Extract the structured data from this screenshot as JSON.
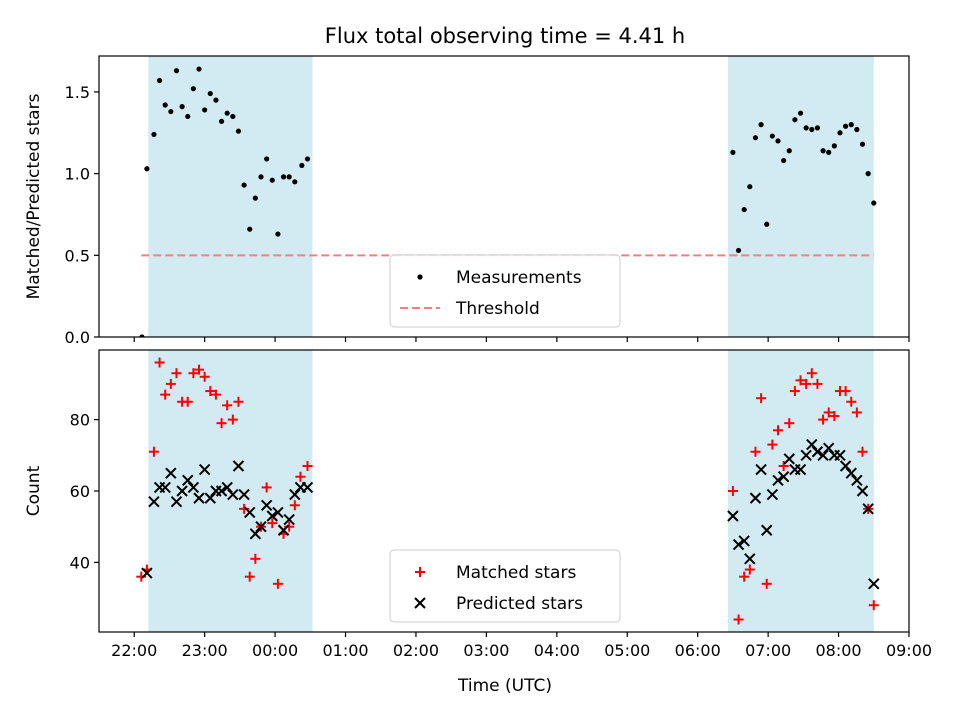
{
  "chart_data": {
    "title": "Flux total observing time = 4.41 h",
    "xlabel": "Time (UTC)",
    "x_tick_labels": [
      "22:00",
      "23:00",
      "00:00",
      "01:00",
      "02:00",
      "03:00",
      "04:00",
      "05:00",
      "06:00",
      "07:00",
      "08:00",
      "09:00"
    ],
    "xlim_hours": [
      21.5,
      33.0
    ],
    "x_ticks_hours": [
      22,
      23,
      24,
      25,
      26,
      27,
      28,
      29,
      30,
      31,
      32,
      33
    ],
    "shaded_intervals_hours": [
      [
        22.2,
        24.53
      ],
      [
        30.43,
        32.5
      ]
    ],
    "shade_color": "#add8e6",
    "panels": [
      {
        "type": "scatter",
        "ylabel": "Matched/Predicted stars",
        "ylim": [
          0,
          1.72
        ],
        "y_ticks": [
          0.0,
          0.5,
          1.0,
          1.5
        ],
        "y_tick_labels": [
          "0.0",
          "0.5",
          "1.0",
          "1.5"
        ],
        "threshold": 0.5,
        "threshold_color": "#f08080",
        "legend": {
          "placement": "lower-center",
          "entries": [
            "Measurements",
            "Threshold"
          ]
        },
        "series": [
          {
            "name": "Measurements",
            "color": "#000000",
            "marker": "dot",
            "points": [
              [
                22.11,
                0.0
              ],
              [
                22.18,
                1.03
              ],
              [
                22.28,
                1.24
              ],
              [
                22.36,
                1.57
              ],
              [
                22.44,
                1.42
              ],
              [
                22.52,
                1.38
              ],
              [
                22.6,
                1.63
              ],
              [
                22.68,
                1.41
              ],
              [
                22.76,
                1.35
              ],
              [
                22.84,
                1.52
              ],
              [
                22.92,
                1.64
              ],
              [
                23.0,
                1.39
              ],
              [
                23.08,
                1.49
              ],
              [
                23.16,
                1.45
              ],
              [
                23.24,
                1.32
              ],
              [
                23.32,
                1.37
              ],
              [
                23.4,
                1.35
              ],
              [
                23.48,
                1.26
              ],
              [
                23.56,
                0.93
              ],
              [
                23.64,
                0.66
              ],
              [
                23.72,
                0.85
              ],
              [
                23.8,
                0.98
              ],
              [
                23.88,
                1.09
              ],
              [
                23.96,
                0.96
              ],
              [
                24.04,
                0.63
              ],
              [
                24.12,
                0.98
              ],
              [
                24.2,
                0.98
              ],
              [
                24.28,
                0.95
              ],
              [
                24.38,
                1.05
              ],
              [
                24.46,
                1.09
              ],
              [
                30.5,
                1.13
              ],
              [
                30.58,
                0.53
              ],
              [
                30.66,
                0.78
              ],
              [
                30.74,
                0.92
              ],
              [
                30.82,
                1.22
              ],
              [
                30.9,
                1.3
              ],
              [
                30.98,
                0.69
              ],
              [
                31.06,
                1.23
              ],
              [
                31.14,
                1.2
              ],
              [
                31.22,
                1.08
              ],
              [
                31.3,
                1.14
              ],
              [
                31.38,
                1.33
              ],
              [
                31.46,
                1.37
              ],
              [
                31.54,
                1.28
              ],
              [
                31.62,
                1.27
              ],
              [
                31.7,
                1.28
              ],
              [
                31.78,
                1.14
              ],
              [
                31.86,
                1.13
              ],
              [
                31.94,
                1.17
              ],
              [
                32.02,
                1.25
              ],
              [
                32.1,
                1.29
              ],
              [
                32.18,
                1.3
              ],
              [
                32.26,
                1.27
              ],
              [
                32.34,
                1.18
              ],
              [
                32.42,
                1.0
              ],
              [
                32.5,
                0.82
              ]
            ]
          }
        ]
      },
      {
        "type": "scatter",
        "ylabel": "Count",
        "ylim": [
          20.5,
          99.5
        ],
        "y_ticks": [
          40,
          60,
          80
        ],
        "y_tick_labels": [
          "40",
          "60",
          "80"
        ],
        "legend": {
          "placement": "lower-center",
          "entries": [
            "Matched stars",
            "Predicted stars"
          ]
        },
        "series": [
          {
            "name": "Matched stars",
            "color": "#ff0000",
            "marker": "plus",
            "points": [
              [
                22.1,
                36
              ],
              [
                22.18,
                38
              ],
              [
                22.28,
                71
              ],
              [
                22.36,
                96
              ],
              [
                22.44,
                87
              ],
              [
                22.52,
                90
              ],
              [
                22.6,
                93
              ],
              [
                22.68,
                85
              ],
              [
                22.76,
                85
              ],
              [
                22.84,
                93
              ],
              [
                22.92,
                94
              ],
              [
                23.0,
                92
              ],
              [
                23.08,
                88
              ],
              [
                23.16,
                87
              ],
              [
                23.24,
                79
              ],
              [
                23.32,
                84
              ],
              [
                23.4,
                80
              ],
              [
                23.48,
                85
              ],
              [
                23.56,
                55
              ],
              [
                23.64,
                36
              ],
              [
                23.72,
                41
              ],
              [
                23.8,
                50
              ],
              [
                23.88,
                61
              ],
              [
                23.96,
                51
              ],
              [
                24.04,
                34
              ],
              [
                24.12,
                48
              ],
              [
                24.2,
                50
              ],
              [
                24.28,
                56
              ],
              [
                24.36,
                64
              ],
              [
                24.46,
                67
              ],
              [
                30.5,
                60
              ],
              [
                30.58,
                24
              ],
              [
                30.66,
                36
              ],
              [
                30.74,
                38
              ],
              [
                30.82,
                71
              ],
              [
                30.9,
                86
              ],
              [
                30.98,
                34
              ],
              [
                31.06,
                73
              ],
              [
                31.14,
                77
              ],
              [
                31.22,
                67
              ],
              [
                31.3,
                79
              ],
              [
                31.38,
                88
              ],
              [
                31.46,
                91
              ],
              [
                31.54,
                90
              ],
              [
                31.62,
                93
              ],
              [
                31.7,
                90
              ],
              [
                31.78,
                80
              ],
              [
                31.86,
                82
              ],
              [
                31.94,
                81
              ],
              [
                32.02,
                88
              ],
              [
                32.1,
                88
              ],
              [
                32.18,
                85
              ],
              [
                32.26,
                82
              ],
              [
                32.34,
                71
              ],
              [
                32.42,
                55
              ],
              [
                32.5,
                28
              ]
            ]
          },
          {
            "name": "Predicted stars",
            "color": "#000000",
            "marker": "x",
            "points": [
              [
                22.18,
                37
              ],
              [
                22.28,
                57
              ],
              [
                22.36,
                61
              ],
              [
                22.44,
                61
              ],
              [
                22.52,
                65
              ],
              [
                22.6,
                57
              ],
              [
                22.68,
                60
              ],
              [
                22.76,
                63
              ],
              [
                22.84,
                61
              ],
              [
                22.92,
                58
              ],
              [
                23.0,
                66
              ],
              [
                23.08,
                58
              ],
              [
                23.16,
                60
              ],
              [
                23.24,
                60
              ],
              [
                23.32,
                61
              ],
              [
                23.4,
                59
              ],
              [
                23.48,
                67
              ],
              [
                23.56,
                59
              ],
              [
                23.64,
                54
              ],
              [
                23.72,
                48
              ],
              [
                23.8,
                50
              ],
              [
                23.88,
                56
              ],
              [
                23.96,
                53
              ],
              [
                24.04,
                54
              ],
              [
                24.12,
                49
              ],
              [
                24.2,
                52
              ],
              [
                24.28,
                59
              ],
              [
                24.36,
                61
              ],
              [
                24.46,
                61
              ],
              [
                30.5,
                53
              ],
              [
                30.58,
                45
              ],
              [
                30.66,
                46
              ],
              [
                30.74,
                41
              ],
              [
                30.82,
                58
              ],
              [
                30.9,
                66
              ],
              [
                30.98,
                49
              ],
              [
                31.06,
                59
              ],
              [
                31.14,
                63
              ],
              [
                31.22,
                64
              ],
              [
                31.3,
                69
              ],
              [
                31.38,
                66
              ],
              [
                31.46,
                66
              ],
              [
                31.54,
                70
              ],
              [
                31.62,
                73
              ],
              [
                31.7,
                71
              ],
              [
                31.78,
                70
              ],
              [
                31.86,
                72
              ],
              [
                31.94,
                70
              ],
              [
                32.02,
                70
              ],
              [
                32.1,
                67
              ],
              [
                32.18,
                65
              ],
              [
                32.26,
                63
              ],
              [
                32.34,
                60
              ],
              [
                32.42,
                55
              ],
              [
                32.5,
                34
              ]
            ]
          }
        ]
      }
    ]
  }
}
